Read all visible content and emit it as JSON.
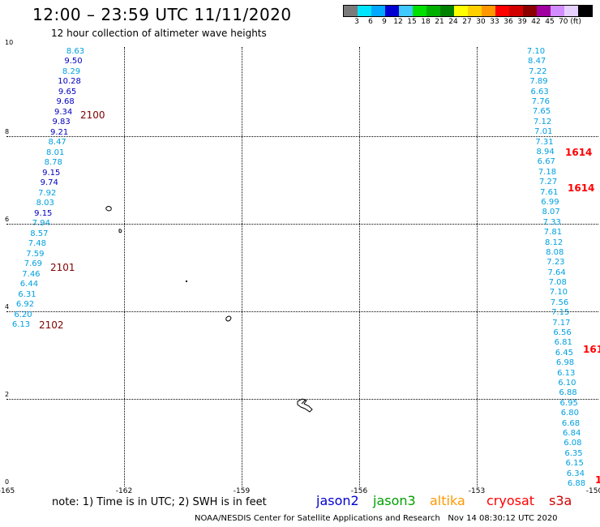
{
  "title": "12:00 – 23:59 UTC 11/11/2020",
  "subtitle": "12 hour collection of altimeter wave heights",
  "colorbar": {
    "colors": [
      "#7a7a7a",
      "#00e5ff",
      "#00a8ff",
      "#0000d0",
      "#3fc9ff",
      "#00e000",
      "#00b000",
      "#008000",
      "#ffff00",
      "#ffd000",
      "#ff9800",
      "#ff0000",
      "#d00000",
      "#8b0000",
      "#a000a0",
      "#d28cff",
      "#e6d0ff",
      "#000000"
    ],
    "labels": [
      "3",
      "6",
      "9",
      "12",
      "15",
      "18",
      "21",
      "24",
      "27",
      "30",
      "33",
      "36",
      "39",
      "42",
      "45",
      "70 (ft)"
    ]
  },
  "axes": {
    "x_ticks": [
      "-165",
      "-162",
      "-159",
      "-156",
      "-153",
      "-150"
    ],
    "y_ticks": [
      "0",
      "2",
      "4",
      "6",
      "8",
      "10"
    ]
  },
  "tracks": {
    "left": [
      {
        "v": "8.63",
        "c": "#00a0e0"
      },
      {
        "v": "9.50",
        "c": "#0000c0"
      },
      {
        "v": "8.29",
        "c": "#00a0e0"
      },
      {
        "v": "10.28",
        "c": "#0000c0"
      },
      {
        "v": "9.65",
        "c": "#0000c0"
      },
      {
        "v": "9.68",
        "c": "#0000c0"
      },
      {
        "v": "9.34",
        "c": "#0000c0"
      },
      {
        "v": "9.83",
        "c": "#0000c0"
      },
      {
        "v": "9.21",
        "c": "#0000c0"
      },
      {
        "v": "8.47",
        "c": "#00a0e0"
      },
      {
        "v": "8.01",
        "c": "#00a0e0"
      },
      {
        "v": "8.78",
        "c": "#00a0e0"
      },
      {
        "v": "9.15",
        "c": "#0000c0"
      },
      {
        "v": "9.74",
        "c": "#0000c0"
      },
      {
        "v": "7.92",
        "c": "#00a0e0"
      },
      {
        "v": "8.03",
        "c": "#00a0e0"
      },
      {
        "v": "9.15",
        "c": "#0000c0"
      },
      {
        "v": "7.94",
        "c": "#00a0e0"
      },
      {
        "v": "8.57",
        "c": "#00a0e0"
      },
      {
        "v": "7.48",
        "c": "#00a0e0"
      },
      {
        "v": "7.59",
        "c": "#00a0e0"
      },
      {
        "v": "7.69",
        "c": "#00a0e0"
      },
      {
        "v": "7.46",
        "c": "#00a0e0"
      },
      {
        "v": "6.44",
        "c": "#00a0e0"
      },
      {
        "v": "6.31",
        "c": "#00a0e0"
      },
      {
        "v": "6.92",
        "c": "#00a0e0"
      },
      {
        "v": "6.20",
        "c": "#00a0e0"
      },
      {
        "v": "6.13",
        "c": "#00a0e0"
      }
    ],
    "right": [
      {
        "v": "7.10"
      },
      {
        "v": "8.47"
      },
      {
        "v": "7.22"
      },
      {
        "v": "7.89"
      },
      {
        "v": "6.63"
      },
      {
        "v": "7.76"
      },
      {
        "v": "7.65"
      },
      {
        "v": "7.12"
      },
      {
        "v": "7.01"
      },
      {
        "v": "7.31"
      },
      {
        "v": "8.94"
      },
      {
        "v": "6.67"
      },
      {
        "v": "7.18"
      },
      {
        "v": "7.27"
      },
      {
        "v": "7.61"
      },
      {
        "v": "6.99"
      },
      {
        "v": "8.07"
      },
      {
        "v": "7.33"
      },
      {
        "v": "7.81"
      },
      {
        "v": "8.12"
      },
      {
        "v": "8.08"
      },
      {
        "v": "7.23"
      },
      {
        "v": "7.64"
      },
      {
        "v": "7.08"
      },
      {
        "v": "7.10"
      },
      {
        "v": "7.56"
      },
      {
        "v": "7.15"
      },
      {
        "v": "7.17"
      },
      {
        "v": "6.56"
      },
      {
        "v": "6.81"
      },
      {
        "v": "6.45"
      },
      {
        "v": "6.98"
      },
      {
        "v": "6.13"
      },
      {
        "v": "6.10"
      },
      {
        "v": "6.88"
      },
      {
        "v": "6.95"
      },
      {
        "v": "6.80"
      },
      {
        "v": "6.68"
      },
      {
        "v": "6.84"
      },
      {
        "v": "6.08"
      },
      {
        "v": "6.35"
      },
      {
        "v": "6.15"
      },
      {
        "v": "6.34"
      },
      {
        "v": "6.88"
      }
    ]
  },
  "time_labels": [
    {
      "t": "2100",
      "c": "#800000"
    },
    {
      "t": "2101",
      "c": "#800000"
    },
    {
      "t": "2102",
      "c": "#800000"
    },
    {
      "t": "1614",
      "c": "#ff0000"
    },
    {
      "t": "1614",
      "c": "#ff0000"
    },
    {
      "t": "161",
      "c": "#ff0000"
    },
    {
      "t": "1",
      "c": "#ff0000"
    }
  ],
  "note": "note:  1) Time is in UTC;  2) SWH is in feet",
  "satellites": [
    {
      "name": "jason2",
      "color": "#0000d0"
    },
    {
      "name": "jason3",
      "color": "#00a000"
    },
    {
      "name": "altika",
      "color": "#ff9800"
    },
    {
      "name": "cryosat",
      "color": "#ff0000"
    },
    {
      "name": "s3a",
      "color": "#d00000"
    }
  ],
  "credit": "NOAA/NESDIS Center for Satellite Applications and Research",
  "generated": "Nov 14 08:30:12 UTC 2020"
}
